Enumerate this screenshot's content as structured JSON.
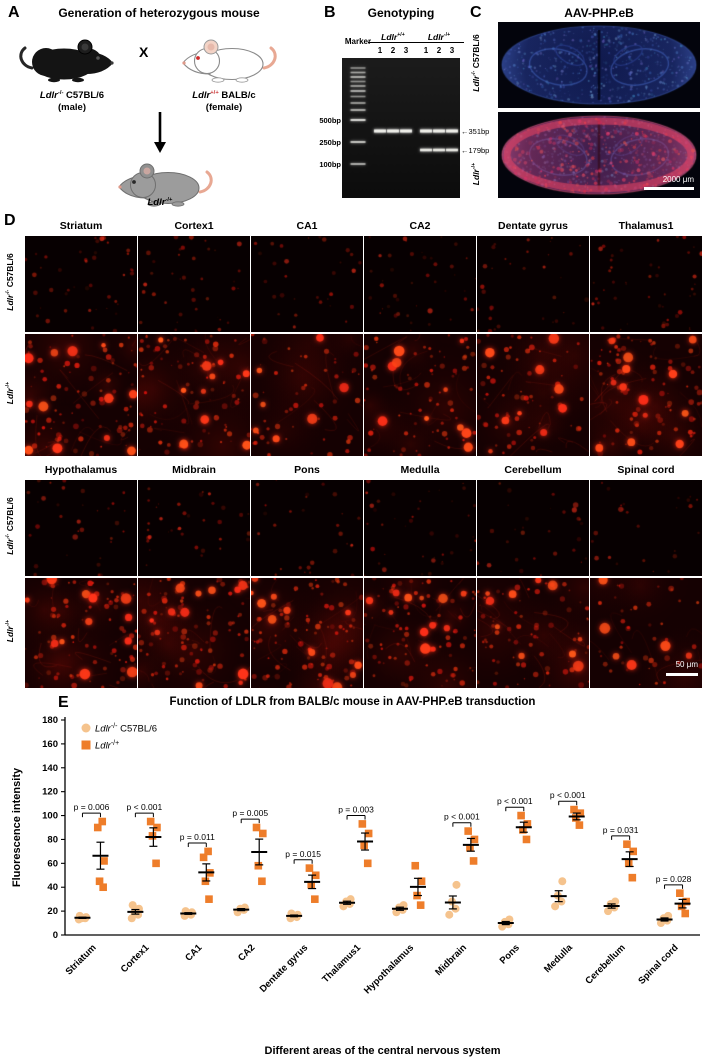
{
  "panelA": {
    "label": "A",
    "title": "Generation of heterozygous mouse",
    "father": {
      "gene": "Ldlr",
      "sup": "-/-",
      "strain": "C57BL/6",
      "sex": "(male)"
    },
    "cross_symbol": "X",
    "mother": {
      "gene": "Ldlr",
      "sup": "+/+",
      "strain": "BALB/c",
      "sex": "(female)",
      "sup_color": "#c93434"
    },
    "offspring": {
      "gene": "Ldlr",
      "sup": "-/+"
    }
  },
  "panelB": {
    "label": "B",
    "title": "Genotyping",
    "marker_label": "Marker",
    "groups": [
      {
        "gene": "Ldlr",
        "sup": "+/+"
      },
      {
        "gene": "Ldlr",
        "sup": "-/+"
      }
    ],
    "lane_numbers": [
      "1",
      "2",
      "3",
      "1",
      "2",
      "3"
    ],
    "ladder_labels": [
      "500bp",
      "250bp",
      "100bp"
    ],
    "band_arrows": [
      "351bp",
      "179bp"
    ]
  },
  "panelC": {
    "label": "C",
    "title": "AAV-PHP.eB",
    "rows": [
      {
        "gene": "Ldlr",
        "sup": "-/-",
        "strain": "C57BL/6"
      },
      {
        "gene": "Ldlr",
        "sup": "-/+"
      }
    ],
    "scalebar": "2000 μm"
  },
  "panelD": {
    "label": "D",
    "columns_group1": [
      "Striatum",
      "Cortex1",
      "CA1",
      "CA2",
      "Dentate gyrus",
      "Thalamus1"
    ],
    "columns_group2": [
      "Hypothalamus",
      "Midbrain",
      "Pons",
      "Medulla",
      "Cerebellum",
      "Spinal cord"
    ],
    "row_labels": [
      {
        "gene": "Ldlr",
        "sup": "-/-",
        "strain": "C57BL/6"
      },
      {
        "gene": "Ldlr",
        "sup": "-/+"
      }
    ],
    "scalebar": "50 μm"
  },
  "panelE": {
    "label": "E"
  },
  "chart_data": {
    "type": "scatter",
    "title": "Function of LDLR from BALB/c mouse in AAV-PHP.eB transduction",
    "xlabel": "Different areas of the central nervous system",
    "ylabel": "Fluorescence intensity",
    "ylim": [
      0,
      180
    ],
    "ytick_step": 20,
    "grid": false,
    "legend_position": "top-left",
    "categories": [
      "Striatum",
      "Cortex1",
      "CA1",
      "CA2",
      "Dentate gyrus",
      "Thalamus1",
      "Hypothalamus",
      "Midbrain",
      "Pons",
      "Medulla",
      "Cerebellum",
      "Spinal cord"
    ],
    "legend": [
      {
        "gene": "Ldlr",
        "sup": "-/-",
        "strain": " C57BL/6",
        "marker": "circle",
        "color": "#F5C38D"
      },
      {
        "gene": "Ldlr",
        "sup": "-/+",
        "strain": "",
        "marker": "square",
        "color": "#EE7D2A"
      }
    ],
    "p_values": [
      "p = 0.006",
      "p < 0.001",
      "p = 0.011",
      "p = 0.005",
      "p = 0.015",
      "p = 0.003",
      "",
      "p < 0.001",
      "p < 0.001",
      "p < 0.001",
      "p = 0.031",
      "p = 0.028"
    ],
    "series": [
      {
        "name": "Ldlr-/- C57BL/6",
        "marker": "circle",
        "color": "#F5C38D",
        "values": [
          [
            13,
            14,
            14,
            15,
            16
          ],
          [
            14,
            17,
            19,
            22,
            25
          ],
          [
            16,
            17,
            18,
            19,
            20
          ],
          [
            19,
            21,
            22,
            23
          ],
          [
            14,
            15,
            16,
            17,
            18
          ],
          [
            24,
            26,
            28,
            30
          ],
          [
            19,
            21,
            23,
            25
          ],
          [
            17,
            22,
            28,
            42
          ],
          [
            7,
            9,
            11,
            13
          ],
          [
            24,
            28,
            33,
            45
          ],
          [
            20,
            23,
            26,
            28
          ],
          [
            10,
            12,
            14,
            16
          ]
        ]
      },
      {
        "name": "Ldlr-/+",
        "marker": "square",
        "color": "#EE7D2A",
        "values": [
          [
            40,
            45,
            62,
            90,
            95
          ],
          [
            60,
            83,
            90,
            95
          ],
          [
            30,
            45,
            52,
            65,
            70
          ],
          [
            45,
            58,
            85,
            90
          ],
          [
            30,
            42,
            50,
            56
          ],
          [
            60,
            75,
            85,
            93
          ],
          [
            25,
            33,
            45,
            58
          ],
          [
            62,
            73,
            80,
            87
          ],
          [
            80,
            88,
            93,
            100
          ],
          [
            92,
            98,
            102,
            105
          ],
          [
            48,
            60,
            70,
            76
          ],
          [
            18,
            24,
            28,
            35
          ]
        ]
      }
    ]
  }
}
